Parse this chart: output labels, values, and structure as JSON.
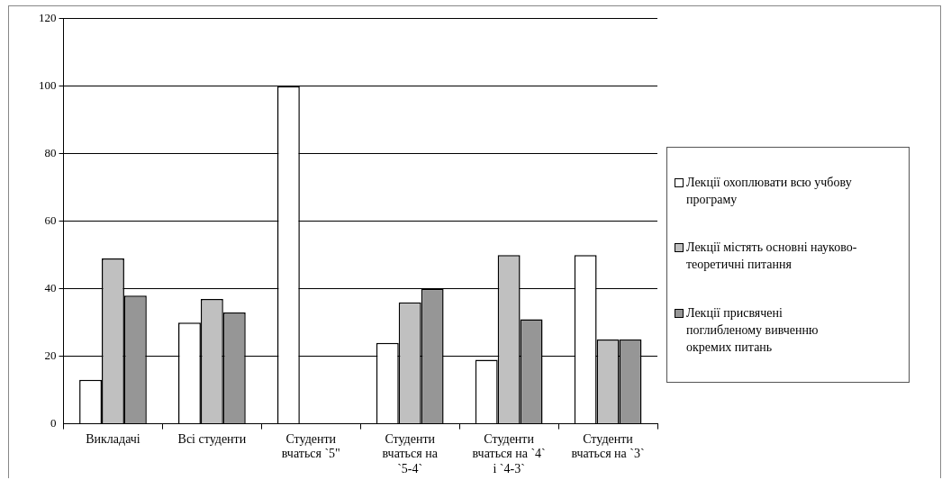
{
  "chart_data": {
    "type": "bar",
    "categories": [
      "Викладачі",
      "Всі студенти",
      "Студенти вчаться `5\"",
      "Студенти вчаться на `5-4`",
      "Студенти вчаться на `4` і `4-3`",
      "Студенти вчаться на `3`"
    ],
    "series": [
      {
        "name": "Лекції охоплювати всю учбову програму",
        "color": "#ffffff",
        "values": [
          13,
          30,
          100,
          24,
          19,
          50
        ]
      },
      {
        "name": "Лекції містять основні науково-теоретичні питання",
        "color": "#c0c0c0",
        "values": [
          49,
          37,
          0,
          36,
          50,
          25
        ]
      },
      {
        "name": "Лекції присвячені поглибленому вивченню окремих питань",
        "color": "#969696",
        "values": [
          38,
          33,
          0,
          40,
          31,
          25
        ]
      }
    ],
    "ylim": [
      0,
      120
    ],
    "yticks": [
      0,
      20,
      40,
      60,
      80,
      100,
      120
    ],
    "grid": "y",
    "legend": "right"
  }
}
